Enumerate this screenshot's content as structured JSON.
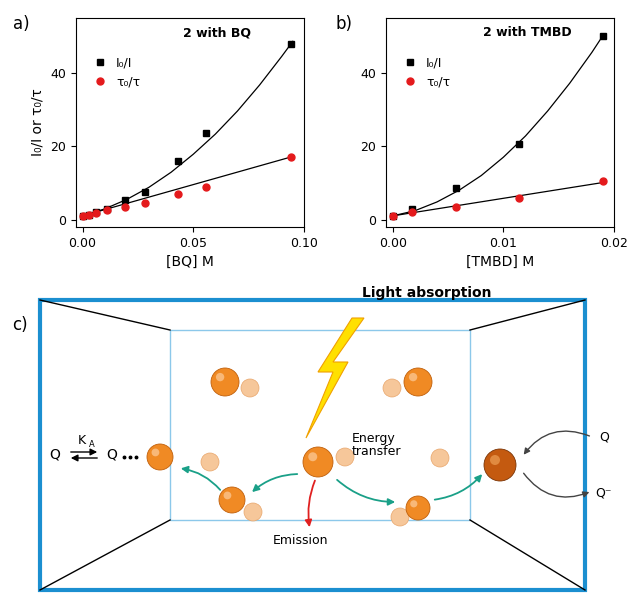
{
  "chart_data": [
    {
      "type": "scatter",
      "panel": "a)",
      "title": "2 with BQ",
      "x_label": "[BQ] M",
      "y_label": "I₀/I or τ₀/τ",
      "xlim": [
        -0.003,
        0.1
      ],
      "xticks": [
        {
          "value": 0,
          "label": "0.00"
        },
        {
          "value": 0.05,
          "label": "0.05"
        },
        {
          "value": 0.1,
          "label": "0.10"
        }
      ],
      "ylim": [
        -2,
        55
      ],
      "yticks": [
        0,
        20,
        40
      ],
      "legend": "upper left",
      "series": [
        {
          "name": "I₀/I",
          "color": "#000000",
          "marker": "square",
          "x": [
            0,
            0.003,
            0.006,
            0.011,
            0.019,
            0.028,
            0.043,
            0.056,
            0.094
          ],
          "values": [
            1,
            1.3,
            2,
            3,
            5.2,
            7.5,
            16,
            23.5,
            48
          ],
          "curve": {
            "x": [
              0,
              0.01,
              0.02,
              0.03,
              0.04,
              0.05,
              0.06,
              0.07,
              0.08,
              0.09,
              0.095
            ],
            "values": [
              1,
              2.9,
              5.5,
              8.8,
              12.9,
              17.8,
              23.3,
              29.6,
              36.7,
              44.5,
              48.6
            ]
          }
        },
        {
          "name": "τ₀/τ",
          "color": "#e41a1c",
          "marker": "circle",
          "x": [
            0,
            0.003,
            0.006,
            0.011,
            0.019,
            0.028,
            0.043,
            0.056,
            0.094
          ],
          "values": [
            1,
            1.2,
            1.8,
            2.5,
            3.5,
            4.5,
            7,
            9,
            17
          ],
          "curve": {
            "x": [
              0,
              0.095
            ],
            "values": [
              1,
              17.2
            ]
          }
        }
      ]
    },
    {
      "type": "scatter",
      "panel": "b)",
      "title": "2 with TMBD",
      "x_label": "[TMBD] M",
      "xlim": [
        -0.0006,
        0.02
      ],
      "xticks": [
        {
          "value": 0,
          "label": "0.00"
        },
        {
          "value": 0.01,
          "label": "0.01"
        },
        {
          "value": 0.02,
          "label": "0.02"
        }
      ],
      "ylim": [
        -2,
        55
      ],
      "yticks": [
        0,
        20,
        40
      ],
      "legend": "upper left",
      "series": [
        {
          "name": "I₀/I",
          "color": "#000000",
          "marker": "square",
          "x": [
            0,
            0.0017,
            0.0057,
            0.0114,
            0.019
          ],
          "values": [
            1,
            3,
            8.5,
            20.5,
            50
          ],
          "curve": {
            "x": [
              0,
              0.002,
              0.004,
              0.006,
              0.008,
              0.01,
              0.012,
              0.014,
              0.016,
              0.018,
              0.019
            ],
            "values": [
              1,
              2.4,
              4.8,
              8.0,
              12.0,
              17,
              22.8,
              29.6,
              37.2,
              45.6,
              50.2
            ]
          }
        },
        {
          "name": "τ₀/τ",
          "color": "#e41a1c",
          "marker": "circle",
          "x": [
            0,
            0.0017,
            0.0057,
            0.0114,
            0.019
          ],
          "values": [
            1,
            2,
            3.5,
            6,
            10.5
          ],
          "curve": {
            "x": [
              0,
              0.019
            ],
            "values": [
              1,
              10.1
            ]
          }
        }
      ]
    }
  ],
  "diagram": {
    "label": "c)",
    "light": "Light absorption",
    "transfer": "Energy\ntransfer",
    "emission": "Emission",
    "equilibrium": {
      "left": "Q",
      "right": "Q",
      "constant": "K",
      "constant_subscript": "A"
    },
    "quench": {
      "in": "Q",
      "out": "Q⁻"
    }
  }
}
